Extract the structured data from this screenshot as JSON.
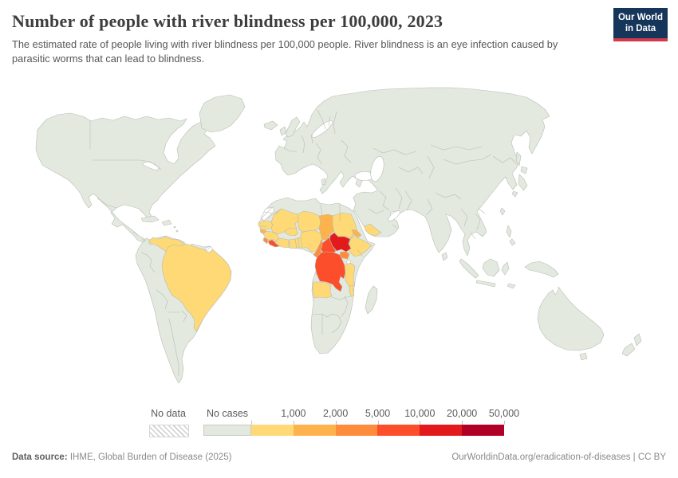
{
  "header": {
    "title": "Number of people with river blindness per 100,000, 2023",
    "subtitle": "The estimated rate of people living with river blindness per 100,000 people. River blindness is an eye infection caused by parasitic worms that can lead to blindness.",
    "logo": {
      "line1": "Our World",
      "line2": "in Data",
      "bg": "#16355a",
      "stripe": "#d23b4d"
    }
  },
  "legend": {
    "no_data_label": "No data",
    "no_cases_label": "No cases",
    "no_cases_color": "#e4e9e0",
    "buckets": [
      {
        "label": "1,000",
        "color": "#fed976"
      },
      {
        "label": "2,000",
        "color": "#feb24c"
      },
      {
        "label": "5,000",
        "color": "#fd8d3c"
      },
      {
        "label": "10,000",
        "color": "#fc4e2a"
      },
      {
        "label": "20,000",
        "color": "#e31a1c"
      },
      {
        "label": "50,000",
        "color": "#b10026"
      }
    ]
  },
  "footer": {
    "source_prefix": "Data source:",
    "source_text": " IHME, Global Burden of Disease (2025)",
    "credit": "OurWorldinData.org/eradication-of-diseases | CC BY"
  },
  "map": {
    "land_color": "#e4e9e0",
    "border_color": "#b6bdb3",
    "palette": [
      "#fed976",
      "#feb24c",
      "#fd8d3c",
      "#fc4e2a",
      "#e31a1c",
      "#b10026"
    ],
    "country_buckets": {
      "venezuela": 0,
      "brazil": 0,
      "senegal": 0,
      "guinea": 0,
      "mali": 0,
      "burkina-faso": 0,
      "cote-divoire": 0,
      "ghana": 0,
      "togo-benin": 0,
      "niger": 0,
      "nigeria": 0,
      "sudan": 0,
      "ethiopia": 0,
      "yemen": 0,
      "angola": 0,
      "tanzania": 0,
      "malawi": 0,
      "guinea-bissau": 1,
      "chad": 1,
      "eritrea": 1,
      "sierra-leone": 2,
      "cameroon": 2,
      "uganda": 2,
      "liberia": 3,
      "central-african-republic": 3,
      "democratic-republic-of-congo": 3,
      "south-sudan": 4
    },
    "no_data_countries": [
      "western-sahara",
      "french-guiana"
    ]
  },
  "chart_data": {
    "type": "choropleth-map",
    "title": "Number of people with river blindness per 100,000, 2023",
    "year": 2023,
    "unit": "people with river blindness per 100,000 people",
    "legend_type": "binned color scale",
    "bins": [
      "No data",
      "No cases",
      "up to 1,000",
      "1,000-2,000",
      "2,000-5,000",
      "5,000-10,000",
      "10,000-20,000",
      "20,000-50,000"
    ],
    "bin_colors": [
      "hatched",
      "#e4e9e0",
      "#fed976",
      "#feb24c",
      "#fd8d3c",
      "#fc4e2a",
      "#e31a1c",
      "#b10026"
    ],
    "countries_by_bin": {
      "up to 1,000": [
        "Venezuela",
        "Brazil",
        "Senegal",
        "Guinea",
        "Mali",
        "Burkina Faso",
        "Cote d'Ivoire",
        "Ghana",
        "Togo",
        "Benin",
        "Niger",
        "Nigeria",
        "Sudan",
        "Ethiopia",
        "Yemen",
        "Angola",
        "Tanzania",
        "Malawi"
      ],
      "1,000-2,000": [
        "Guinea-Bissau",
        "Chad",
        "Eritrea"
      ],
      "2,000-5,000": [
        "Sierra Leone",
        "Cameroon",
        "Uganda"
      ],
      "5,000-10,000": [
        "Liberia",
        "Central African Republic",
        "Democratic Republic of Congo"
      ],
      "10,000-20,000": [
        "South Sudan"
      ],
      "no_data": [
        "Western Sahara",
        "French Guiana"
      ],
      "no_cases": [
        "Rest of the world (Europe, Asia, North America, most of South America, Oceania, northern and southern Africa)"
      ]
    }
  }
}
